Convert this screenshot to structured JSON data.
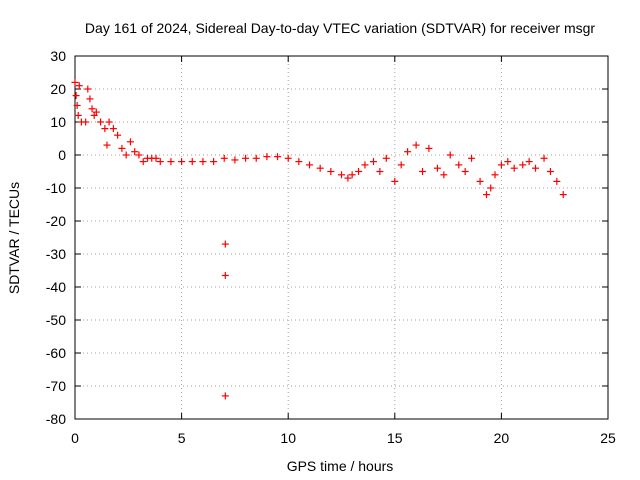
{
  "chart_data": {
    "type": "scatter",
    "title": "Day 161 of 2024, Sidereal Day-to-day VTEC variation (SDTVAR) for receiver msgr",
    "xlabel": "GPS time / hours",
    "ylabel": "SDTVAR / TECUs",
    "xlim": [
      0,
      25
    ],
    "ylim": [
      -80,
      30
    ],
    "xticks": [
      "0",
      "5",
      "10",
      "15",
      "20",
      "25"
    ],
    "yticks": [
      "30",
      "20",
      "10",
      "0",
      "-10",
      "-20",
      "-30",
      "-40",
      "-50",
      "-60",
      "-70",
      "-80"
    ],
    "grid": true,
    "marker": "+",
    "color": "#ff0000",
    "series": [
      {
        "name": "SDTVAR",
        "x": [
          0.0,
          0.05,
          0.1,
          0.15,
          0.2,
          0.3,
          0.5,
          0.6,
          0.7,
          0.8,
          0.9,
          1.0,
          1.2,
          1.4,
          1.5,
          1.6,
          1.8,
          2.0,
          2.2,
          2.4,
          2.6,
          2.8,
          3.0,
          3.2,
          3.4,
          3.6,
          3.8,
          4.0,
          4.5,
          5.0,
          5.5,
          6.0,
          6.5,
          7.0,
          7.05,
          7.05,
          7.05,
          7.5,
          8.0,
          8.5,
          9.0,
          9.5,
          10.0,
          10.5,
          11.0,
          11.5,
          12.0,
          12.5,
          12.8,
          13.0,
          13.3,
          13.6,
          14.0,
          14.3,
          14.6,
          15.0,
          15.3,
          15.6,
          16.0,
          16.3,
          16.6,
          17.0,
          17.3,
          17.6,
          18.0,
          18.3,
          18.6,
          19.0,
          19.3,
          19.5,
          19.7,
          20.0,
          20.3,
          20.6,
          21.0,
          21.3,
          21.6,
          22.0,
          22.3,
          22.6,
          22.9
        ],
        "y": [
          22,
          18,
          15,
          12,
          21,
          10,
          10,
          20,
          17,
          14,
          12,
          13,
          10,
          8,
          3,
          10,
          8,
          6,
          2,
          0,
          4,
          1,
          0,
          -2,
          -1,
          -1,
          -1,
          -2,
          -2,
          -2,
          -2,
          -2,
          -2,
          -1,
          -27,
          -36.5,
          -73,
          -1.5,
          -1,
          -1,
          -0.5,
          -0.5,
          -1,
          -2,
          -3,
          -4,
          -5,
          -6,
          -7,
          -6,
          -5,
          -3,
          -2,
          -5,
          -1,
          -8,
          -3,
          1,
          3,
          -5,
          2,
          -4,
          -6,
          0,
          -3,
          -5,
          -1,
          -8,
          -12,
          -10,
          -6,
          -3,
          -2,
          -4,
          -3,
          -2,
          -4,
          -1,
          -5,
          -8,
          -12
        ]
      }
    ]
  }
}
